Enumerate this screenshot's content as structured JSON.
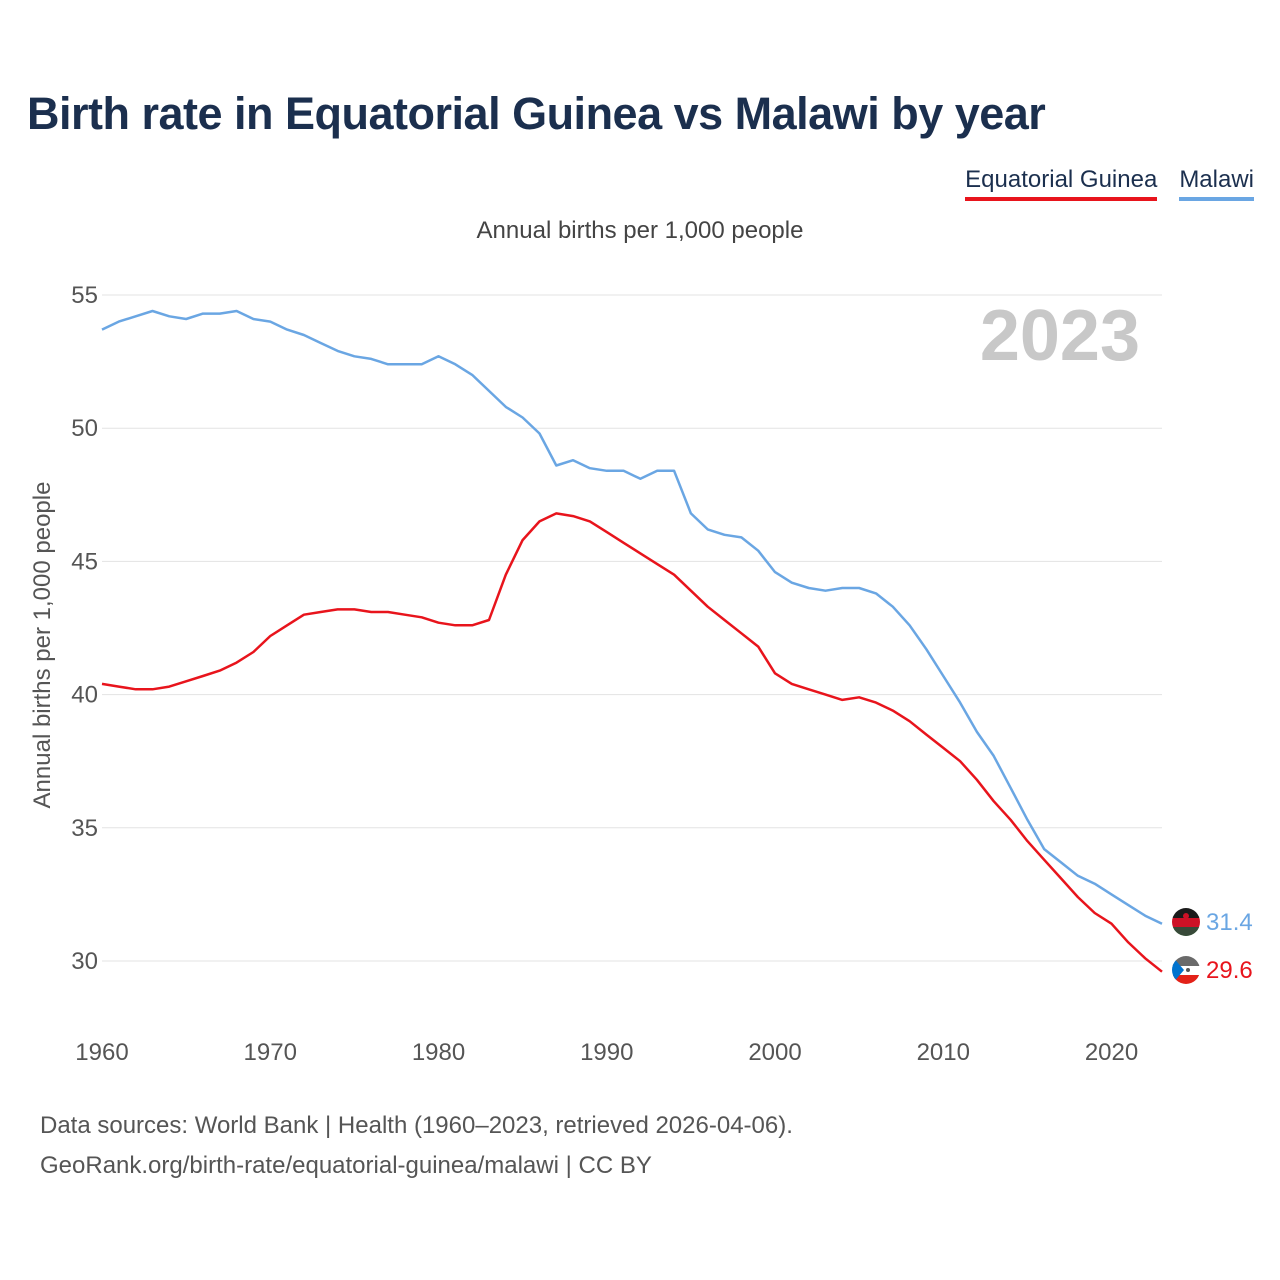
{
  "chart_data": {
    "type": "line",
    "title": "Birth rate in Equatorial Guinea vs Malawi by year",
    "subtitle": "Annual births per 1,000 people",
    "ylabel": "Annual births per 1,000 people",
    "xlabel": "",
    "year_label": "2023",
    "xlim": [
      1960,
      2023
    ],
    "ylim": [
      28,
      56
    ],
    "xticks": [
      1960,
      1970,
      1980,
      1990,
      2000,
      2010,
      2020
    ],
    "yticks": [
      30,
      35,
      40,
      45,
      50,
      55
    ],
    "grid": true,
    "legend_position": "top-right",
    "x": [
      1960,
      1961,
      1962,
      1963,
      1964,
      1965,
      1966,
      1967,
      1968,
      1969,
      1970,
      1971,
      1972,
      1973,
      1974,
      1975,
      1976,
      1977,
      1978,
      1979,
      1980,
      1981,
      1982,
      1983,
      1984,
      1985,
      1986,
      1987,
      1988,
      1989,
      1990,
      1991,
      1992,
      1993,
      1994,
      1995,
      1996,
      1997,
      1998,
      1999,
      2000,
      2001,
      2002,
      2003,
      2004,
      2005,
      2006,
      2007,
      2008,
      2009,
      2010,
      2011,
      2012,
      2013,
      2014,
      2015,
      2016,
      2017,
      2018,
      2019,
      2020,
      2021,
      2022,
      2023
    ],
    "series": [
      {
        "name": "Equatorial Guinea",
        "color": "#e8141c",
        "end_label": "29.6",
        "values": [
          40.4,
          40.3,
          40.2,
          40.2,
          40.3,
          40.5,
          40.7,
          40.9,
          41.2,
          41.6,
          42.2,
          42.6,
          43.0,
          43.1,
          43.2,
          43.2,
          43.1,
          43.1,
          43.0,
          42.9,
          42.7,
          42.6,
          42.6,
          42.8,
          44.5,
          45.8,
          46.5,
          46.8,
          46.7,
          46.5,
          46.1,
          45.7,
          45.3,
          44.9,
          44.5,
          43.9,
          43.3,
          42.8,
          42.3,
          41.8,
          40.8,
          40.4,
          40.2,
          40.0,
          39.8,
          39.9,
          39.7,
          39.4,
          39.0,
          38.5,
          38.0,
          37.5,
          36.8,
          36.0,
          35.3,
          34.5,
          33.8,
          33.1,
          32.4,
          31.8,
          31.4,
          30.7,
          30.1,
          29.6
        ]
      },
      {
        "name": "Malawi",
        "color": "#6aa6e3",
        "end_label": "31.4",
        "values": [
          53.7,
          54.0,
          54.2,
          54.4,
          54.2,
          54.1,
          54.3,
          54.3,
          54.4,
          54.1,
          54.0,
          53.7,
          53.5,
          53.2,
          52.9,
          52.7,
          52.6,
          52.4,
          52.4,
          52.4,
          52.7,
          52.4,
          52.0,
          51.4,
          50.8,
          50.4,
          49.8,
          48.6,
          48.8,
          48.5,
          48.4,
          48.4,
          48.1,
          48.4,
          48.4,
          46.8,
          46.2,
          46.0,
          45.9,
          45.4,
          44.6,
          44.2,
          44.0,
          43.9,
          44.0,
          44.0,
          43.8,
          43.3,
          42.6,
          41.7,
          40.7,
          39.7,
          38.6,
          37.7,
          36.5,
          35.3,
          34.2,
          33.7,
          33.2,
          32.9,
          32.5,
          32.1,
          31.7,
          31.4
        ]
      }
    ]
  },
  "footer": {
    "sources": "Data sources: World Bank | Health (1960–2023, retrieved 2026-04-06).",
    "credit": "GeoRank.org/birth-rate/equatorial-guinea/malawi | CC BY"
  }
}
